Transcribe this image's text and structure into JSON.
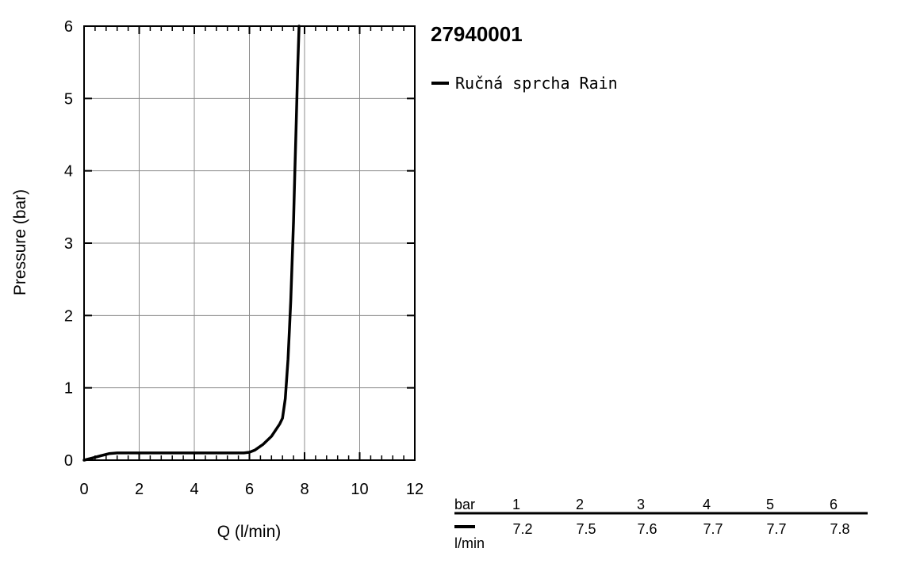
{
  "chart_data": {
    "type": "line",
    "title": "27940001",
    "xlabel": "Q (l/min)",
    "ylabel": "Pressure (bar)",
    "xlim": [
      0,
      12
    ],
    "ylim": [
      0,
      6
    ],
    "x_ticks": [
      "0",
      "2",
      "4",
      "6",
      "8",
      "10",
      "12"
    ],
    "y_ticks": [
      "0",
      "1",
      "2",
      "3",
      "4",
      "5",
      "6"
    ],
    "grid": true,
    "legend_position": "right",
    "series": [
      {
        "name": "Ručná sprcha Rain",
        "color": "#000000",
        "x": [
          0,
          0.3,
          0.6,
          0.9,
          1.2,
          1.5,
          2,
          3,
          4,
          5,
          5.8,
          6.0,
          6.2,
          6.5,
          6.8,
          7.1,
          7.2,
          7.3,
          7.4,
          7.5,
          7.6,
          7.65,
          7.7,
          7.75,
          7.8
        ],
        "y": [
          0,
          0.03,
          0.06,
          0.09,
          0.1,
          0.1,
          0.1,
          0.1,
          0.1,
          0.1,
          0.1,
          0.11,
          0.14,
          0.22,
          0.33,
          0.5,
          0.58,
          0.85,
          1.4,
          2.2,
          3.3,
          4.0,
          4.7,
          5.4,
          6.0
        ]
      }
    ]
  },
  "table": {
    "row_header": "bar",
    "unit_label": "l/min",
    "bar_values": [
      "1",
      "2",
      "3",
      "4",
      "5",
      "6"
    ],
    "flow_values": [
      "7.2",
      "7.5",
      "7.6",
      "7.7",
      "7.7",
      "7.8"
    ]
  }
}
